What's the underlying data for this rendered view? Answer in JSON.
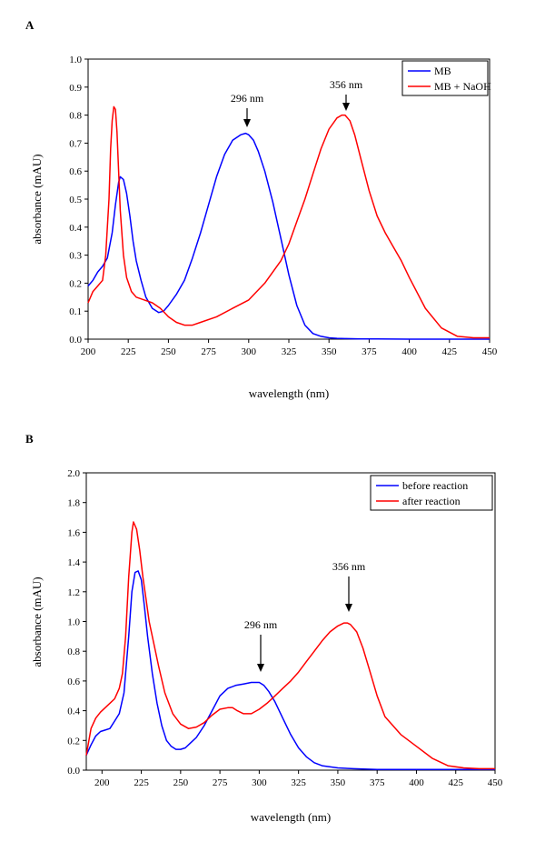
{
  "chart_data": [
    {
      "type": "line",
      "panel": "A",
      "xlabel": "wavelength (nm)",
      "ylabel": "absorbance (mAU)",
      "xlim": [
        200,
        450
      ],
      "ylim": [
        0.0,
        1.0
      ],
      "xticks": [
        200,
        225,
        250,
        275,
        300,
        325,
        350,
        375,
        400,
        425,
        450
      ],
      "xtick_labels": [
        "200",
        "225",
        "250",
        "275",
        "300",
        "325",
        "350",
        "375",
        "400",
        "425",
        "450"
      ],
      "yticks": [
        0.0,
        0.1,
        0.2,
        0.3,
        0.4,
        0.5,
        0.6,
        0.7,
        0.8,
        0.9,
        1.0
      ],
      "ytick_labels": [
        "0.0",
        "0.1",
        "0.2",
        "0.3",
        "0.4",
        "0.5",
        "0.6",
        "0.7",
        "0.8",
        "0.9",
        "1.0"
      ],
      "legend_position": "top-right",
      "series": [
        {
          "name": "MB",
          "color": "#0000ff",
          "x": [
            200,
            203,
            206,
            209,
            212,
            215,
            217,
            219,
            220,
            222,
            224,
            226,
            228,
            230,
            233,
            236,
            240,
            244,
            247,
            250,
            255,
            260,
            265,
            270,
            275,
            280,
            285,
            290,
            295,
            298,
            300,
            303,
            306,
            310,
            315,
            320,
            325,
            330,
            335,
            340,
            345,
            350,
            355,
            360,
            370,
            380,
            400,
            425,
            450
          ],
          "y": [
            0.19,
            0.21,
            0.24,
            0.26,
            0.29,
            0.38,
            0.48,
            0.56,
            0.58,
            0.57,
            0.52,
            0.44,
            0.35,
            0.28,
            0.21,
            0.15,
            0.11,
            0.095,
            0.1,
            0.12,
            0.16,
            0.21,
            0.29,
            0.38,
            0.48,
            0.58,
            0.66,
            0.71,
            0.73,
            0.735,
            0.73,
            0.71,
            0.67,
            0.6,
            0.49,
            0.36,
            0.23,
            0.12,
            0.05,
            0.02,
            0.01,
            0.005,
            0.003,
            0.002,
            0.001,
            0.001,
            0.0,
            0.0,
            0.0
          ]
        },
        {
          "name": "MB + NaOH",
          "color": "#ff0000",
          "x": [
            200,
            203,
            206,
            209,
            211,
            213,
            214,
            215,
            216,
            217,
            218,
            219,
            220,
            222,
            224,
            227,
            230,
            235,
            240,
            245,
            250,
            255,
            260,
            265,
            270,
            280,
            290,
            300,
            310,
            320,
            325,
            330,
            335,
            340,
            345,
            350,
            355,
            358,
            360,
            363,
            366,
            370,
            375,
            380,
            385,
            390,
            395,
            400,
            410,
            420,
            430,
            440,
            450
          ],
          "y": [
            0.13,
            0.17,
            0.19,
            0.21,
            0.3,
            0.5,
            0.68,
            0.78,
            0.83,
            0.82,
            0.74,
            0.6,
            0.46,
            0.3,
            0.22,
            0.17,
            0.15,
            0.14,
            0.13,
            0.11,
            0.08,
            0.06,
            0.05,
            0.05,
            0.06,
            0.08,
            0.11,
            0.14,
            0.2,
            0.28,
            0.34,
            0.42,
            0.5,
            0.59,
            0.68,
            0.75,
            0.79,
            0.8,
            0.8,
            0.78,
            0.73,
            0.64,
            0.53,
            0.44,
            0.38,
            0.33,
            0.28,
            0.22,
            0.11,
            0.04,
            0.01,
            0.005,
            0.005
          ]
        }
      ],
      "annotations": [
        {
          "text": "296 nm",
          "x": 296,
          "y": 0.76
        },
        {
          "text": "356 nm",
          "x": 356,
          "y": 0.83
        }
      ]
    },
    {
      "type": "line",
      "panel": "B",
      "xlabel": "wavelength (nm)",
      "ylabel": "absorbance (mAU)",
      "xlim": [
        190,
        450
      ],
      "ylim": [
        0.0,
        2.0
      ],
      "xticks": [
        200,
        225,
        250,
        275,
        300,
        325,
        350,
        375,
        400,
        425,
        450
      ],
      "xtick_labels": [
        "200",
        "225",
        "250",
        "275",
        "300",
        "325",
        "350",
        "375",
        "400",
        "425",
        "450"
      ],
      "yticks": [
        0.0,
        0.2,
        0.4,
        0.6,
        0.8,
        1.0,
        1.2,
        1.4,
        1.6,
        1.8,
        2.0
      ],
      "ytick_labels": [
        "0.0",
        "0.2",
        "0.4",
        "0.6",
        "0.8",
        "1.0",
        "1.2",
        "1.4",
        "1.6",
        "1.8",
        "2.0"
      ],
      "legend_position": "top-right",
      "series": [
        {
          "name": "before reaction",
          "color": "#0000ff",
          "x": [
            190,
            193,
            196,
            199,
            202,
            205,
            208,
            211,
            214,
            217,
            219,
            221,
            223,
            225,
            227,
            229,
            232,
            235,
            238,
            241,
            244,
            247,
            250,
            253,
            256,
            260,
            265,
            270,
            275,
            280,
            285,
            290,
            295,
            298,
            300,
            303,
            306,
            310,
            315,
            320,
            325,
            330,
            335,
            340,
            350,
            360,
            375,
            400,
            425,
            450
          ],
          "y": [
            0.1,
            0.17,
            0.23,
            0.26,
            0.27,
            0.28,
            0.33,
            0.38,
            0.52,
            0.9,
            1.2,
            1.33,
            1.34,
            1.28,
            1.1,
            0.9,
            0.65,
            0.45,
            0.3,
            0.2,
            0.16,
            0.14,
            0.14,
            0.15,
            0.18,
            0.22,
            0.3,
            0.4,
            0.5,
            0.55,
            0.57,
            0.58,
            0.59,
            0.59,
            0.59,
            0.57,
            0.53,
            0.46,
            0.35,
            0.24,
            0.15,
            0.09,
            0.05,
            0.03,
            0.015,
            0.01,
            0.005,
            0.005,
            0.005,
            0.005
          ]
        },
        {
          "name": "after reaction",
          "color": "#ff0000",
          "x": [
            190,
            193,
            196,
            199,
            202,
            205,
            208,
            211,
            213,
            215,
            217,
            219,
            220,
            222,
            224,
            226,
            228,
            230,
            233,
            236,
            240,
            245,
            250,
            255,
            260,
            265,
            270,
            275,
            280,
            283,
            286,
            290,
            295,
            300,
            305,
            310,
            315,
            320,
            325,
            330,
            335,
            340,
            345,
            350,
            354,
            356,
            358,
            362,
            366,
            370,
            375,
            380,
            390,
            400,
            410,
            420,
            430,
            440,
            450
          ],
          "y": [
            0.1,
            0.28,
            0.35,
            0.39,
            0.42,
            0.45,
            0.48,
            0.55,
            0.65,
            0.9,
            1.3,
            1.6,
            1.67,
            1.62,
            1.48,
            1.3,
            1.15,
            1.0,
            0.85,
            0.7,
            0.52,
            0.38,
            0.31,
            0.28,
            0.29,
            0.32,
            0.37,
            0.41,
            0.42,
            0.42,
            0.4,
            0.38,
            0.38,
            0.41,
            0.45,
            0.5,
            0.55,
            0.6,
            0.66,
            0.73,
            0.8,
            0.87,
            0.93,
            0.97,
            0.99,
            0.99,
            0.98,
            0.93,
            0.82,
            0.68,
            0.5,
            0.36,
            0.24,
            0.16,
            0.08,
            0.03,
            0.015,
            0.01,
            0.01
          ]
        }
      ],
      "annotations": [
        {
          "text": "296 nm",
          "x": 296,
          "y": 0.7
        },
        {
          "text": "356 nm",
          "x": 356,
          "y": 1.05
        }
      ]
    }
  ]
}
